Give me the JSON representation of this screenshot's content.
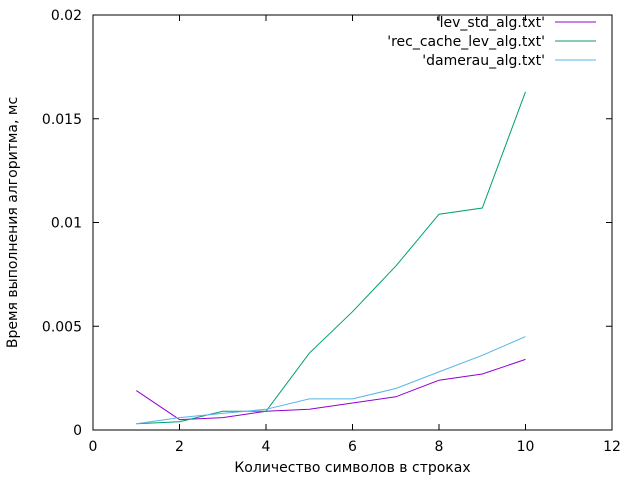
{
  "chart_data": {
    "type": "line",
    "xlabel": "Количество символов в строках",
    "ylabel": "Время выполнения алгоритма, мс",
    "xlim": [
      0,
      12
    ],
    "ylim": [
      0,
      0.02
    ],
    "xticks": [
      "0",
      "2",
      "4",
      "6",
      "8",
      "10",
      "12"
    ],
    "yticks": [
      "0",
      "0.005",
      "0.01",
      "0.015",
      "0.02"
    ],
    "grid": false,
    "legend_position": "top-right",
    "series": [
      {
        "name": "'lev_std_alg.txt'",
        "color": "#9400d3",
        "points": [
          [
            1,
            0.0019
          ],
          [
            2,
            0.0005
          ],
          [
            3,
            0.0006
          ],
          [
            4,
            0.0009
          ],
          [
            5,
            0.001
          ],
          [
            6,
            0.0013
          ],
          [
            7,
            0.0016
          ],
          [
            8,
            0.0024
          ],
          [
            9,
            0.0027
          ],
          [
            10,
            0.0034
          ]
        ]
      },
      {
        "name": "'rec_cache_lev_alg.txt'",
        "color": "#009e73",
        "points": [
          [
            1,
            0.0003
          ],
          [
            2,
            0.0004
          ],
          [
            3,
            0.0009
          ],
          [
            4,
            0.0009
          ],
          [
            5,
            0.0037
          ],
          [
            6,
            0.0057
          ],
          [
            7,
            0.0079
          ],
          [
            8,
            0.0104
          ],
          [
            9,
            0.0107
          ],
          [
            10,
            0.0163
          ]
        ]
      },
      {
        "name": "'damerau_alg.txt'",
        "color": "#56b4e9",
        "points": [
          [
            1,
            0.0003
          ],
          [
            2,
            0.0006
          ],
          [
            3,
            0.0008
          ],
          [
            4,
            0.001
          ],
          [
            5,
            0.0015
          ],
          [
            6,
            0.0015
          ],
          [
            7,
            0.002
          ],
          [
            8,
            0.0028
          ],
          [
            9,
            0.0036
          ],
          [
            10,
            0.0045
          ]
        ]
      }
    ]
  }
}
